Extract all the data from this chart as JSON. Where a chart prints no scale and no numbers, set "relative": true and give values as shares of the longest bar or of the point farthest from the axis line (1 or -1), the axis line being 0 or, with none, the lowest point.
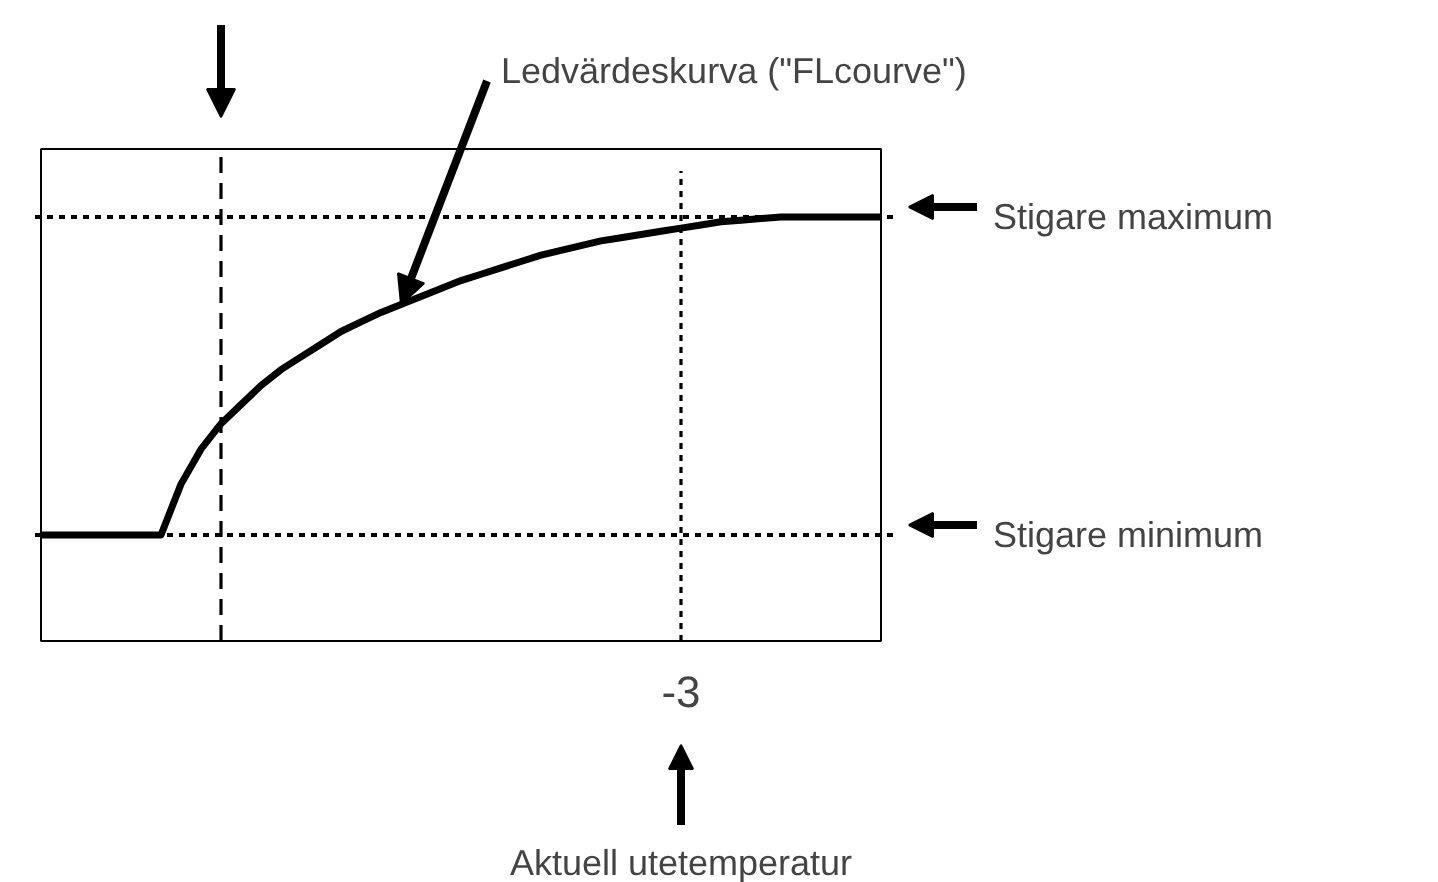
{
  "chart_data": {
    "type": "line",
    "relative": true,
    "categories": [
      null,
      null,
      null,
      null,
      null,
      null,
      null,
      null,
      null,
      null,
      null,
      null,
      null,
      null,
      null,
      null,
      null,
      null,
      null,
      null,
      null,
      null,
      null,
      null,
      null,
      null,
      null,
      null,
      null,
      null,
      null,
      null,
      null,
      null,
      null,
      null,
      null,
      null,
      null,
      null,
      null,
      null,
      null
    ],
    "series": [
      {
        "color": "#000000",
        "values": [
          0,
          0,
          0,
          0,
          0,
          0,
          0,
          0.16,
          0.27,
          0.35,
          0.41,
          0.47,
          0.52,
          0.56,
          0.6,
          0.64,
          0.67,
          0.7,
          0.725,
          0.75,
          0.775,
          0.8,
          0.82,
          0.84,
          0.86,
          0.88,
          0.895,
          0.91,
          0.925,
          0.935,
          0.945,
          0.955,
          0.965,
          0.975,
          0.985,
          0.99,
          0.995,
          1,
          1,
          1,
          1,
          1,
          1
        ]
      }
    ],
    "line_style": "solid",
    "marker": "none",
    "grid": false,
    "ref_lines": [
      {
        "axis": "y",
        "value": 1,
        "label": "Stigare maximum",
        "line_style": "dotted"
      },
      {
        "axis": "y",
        "value": 0,
        "label": "Stigare minimum",
        "line_style": "dotted"
      }
    ],
    "annotations": [
      "Ledvärdeskurva (\"FLcourve\")",
      "-3",
      "Aktuell utetemperatur"
    ]
  }
}
